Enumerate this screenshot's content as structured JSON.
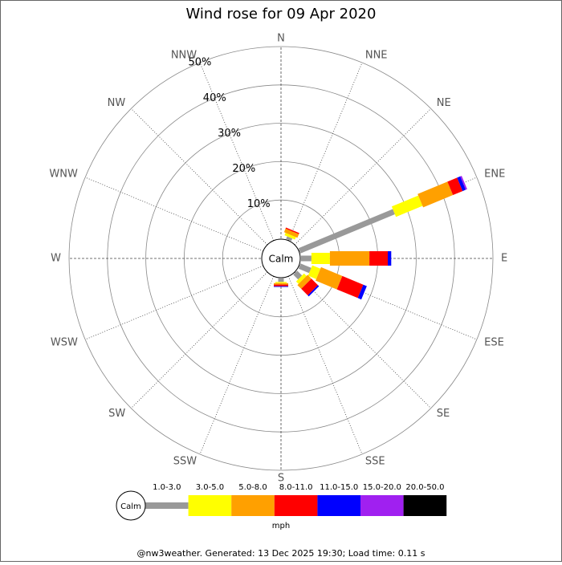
{
  "chart_data": {
    "type": "windrose",
    "title": "Wind rose for 09 Apr 2020",
    "categories": [
      "N",
      "NNE",
      "NE",
      "ENE",
      "E",
      "ESE",
      "SE",
      "SSE",
      "S",
      "SSW",
      "SW",
      "WSW",
      "W",
      "WNW",
      "NW",
      "NNW"
    ],
    "calm_label": "Calm",
    "legend_title": "mph",
    "footer": "@nw3weather. Generated: 13 Dec 2025 19:30; Load time: 0.11 s",
    "rlim": [
      0,
      50
    ],
    "rticks": [
      {
        "value": 10,
        "label": "10%"
      },
      {
        "value": 20,
        "label": "20%"
      },
      {
        "value": 30,
        "label": "30%"
      },
      {
        "value": 40,
        "label": "40%"
      },
      {
        "value": 50,
        "label": "50%"
      }
    ],
    "series": [
      {
        "name": "1.0-3.0",
        "color": "#999999",
        "values": [
          0,
          0.7,
          0,
          26.6,
          2.7,
          3,
          1.8,
          0,
          0.9,
          0,
          0,
          0,
          0,
          0,
          0,
          0
        ]
      },
      {
        "name": "3.0-5.0",
        "color": "#ffff00",
        "values": [
          0,
          0.7,
          0,
          7.5,
          4.8,
          2.3,
          0.9,
          0,
          0.3,
          0,
          0,
          0,
          0,
          0,
          0,
          0
        ]
      },
      {
        "name": "5.0-8.0",
        "color": "#ffa000",
        "values": [
          0,
          1,
          0,
          8.4,
          10.3,
          6,
          1.4,
          0,
          0.4,
          0,
          0,
          0,
          0,
          0,
          0,
          0
        ]
      },
      {
        "name": "8.0-11.0",
        "color": "#ff0000",
        "values": [
          0,
          0.3,
          0,
          2.7,
          4.8,
          5.9,
          2.4,
          0,
          0.4,
          0,
          0,
          0,
          0,
          0,
          0,
          0
        ]
      },
      {
        "name": "11.0-15.0",
        "color": "#0000ff",
        "values": [
          0,
          0,
          0,
          0.9,
          0.9,
          1,
          0.4,
          0,
          0.2,
          0,
          0,
          0,
          0,
          0,
          0,
          0
        ]
      },
      {
        "name": "15.0-20.0",
        "color": "#a020f0",
        "values": [
          0,
          0,
          0,
          0.4,
          0,
          0,
          0,
          0,
          0,
          0,
          0,
          0,
          0,
          0,
          0,
          0
        ]
      },
      {
        "name": "20.0-50.0",
        "color": "#000000",
        "values": [
          0,
          0,
          0,
          0,
          0,
          0,
          0,
          0,
          0,
          0,
          0,
          0,
          0,
          0,
          0,
          0
        ]
      }
    ]
  }
}
